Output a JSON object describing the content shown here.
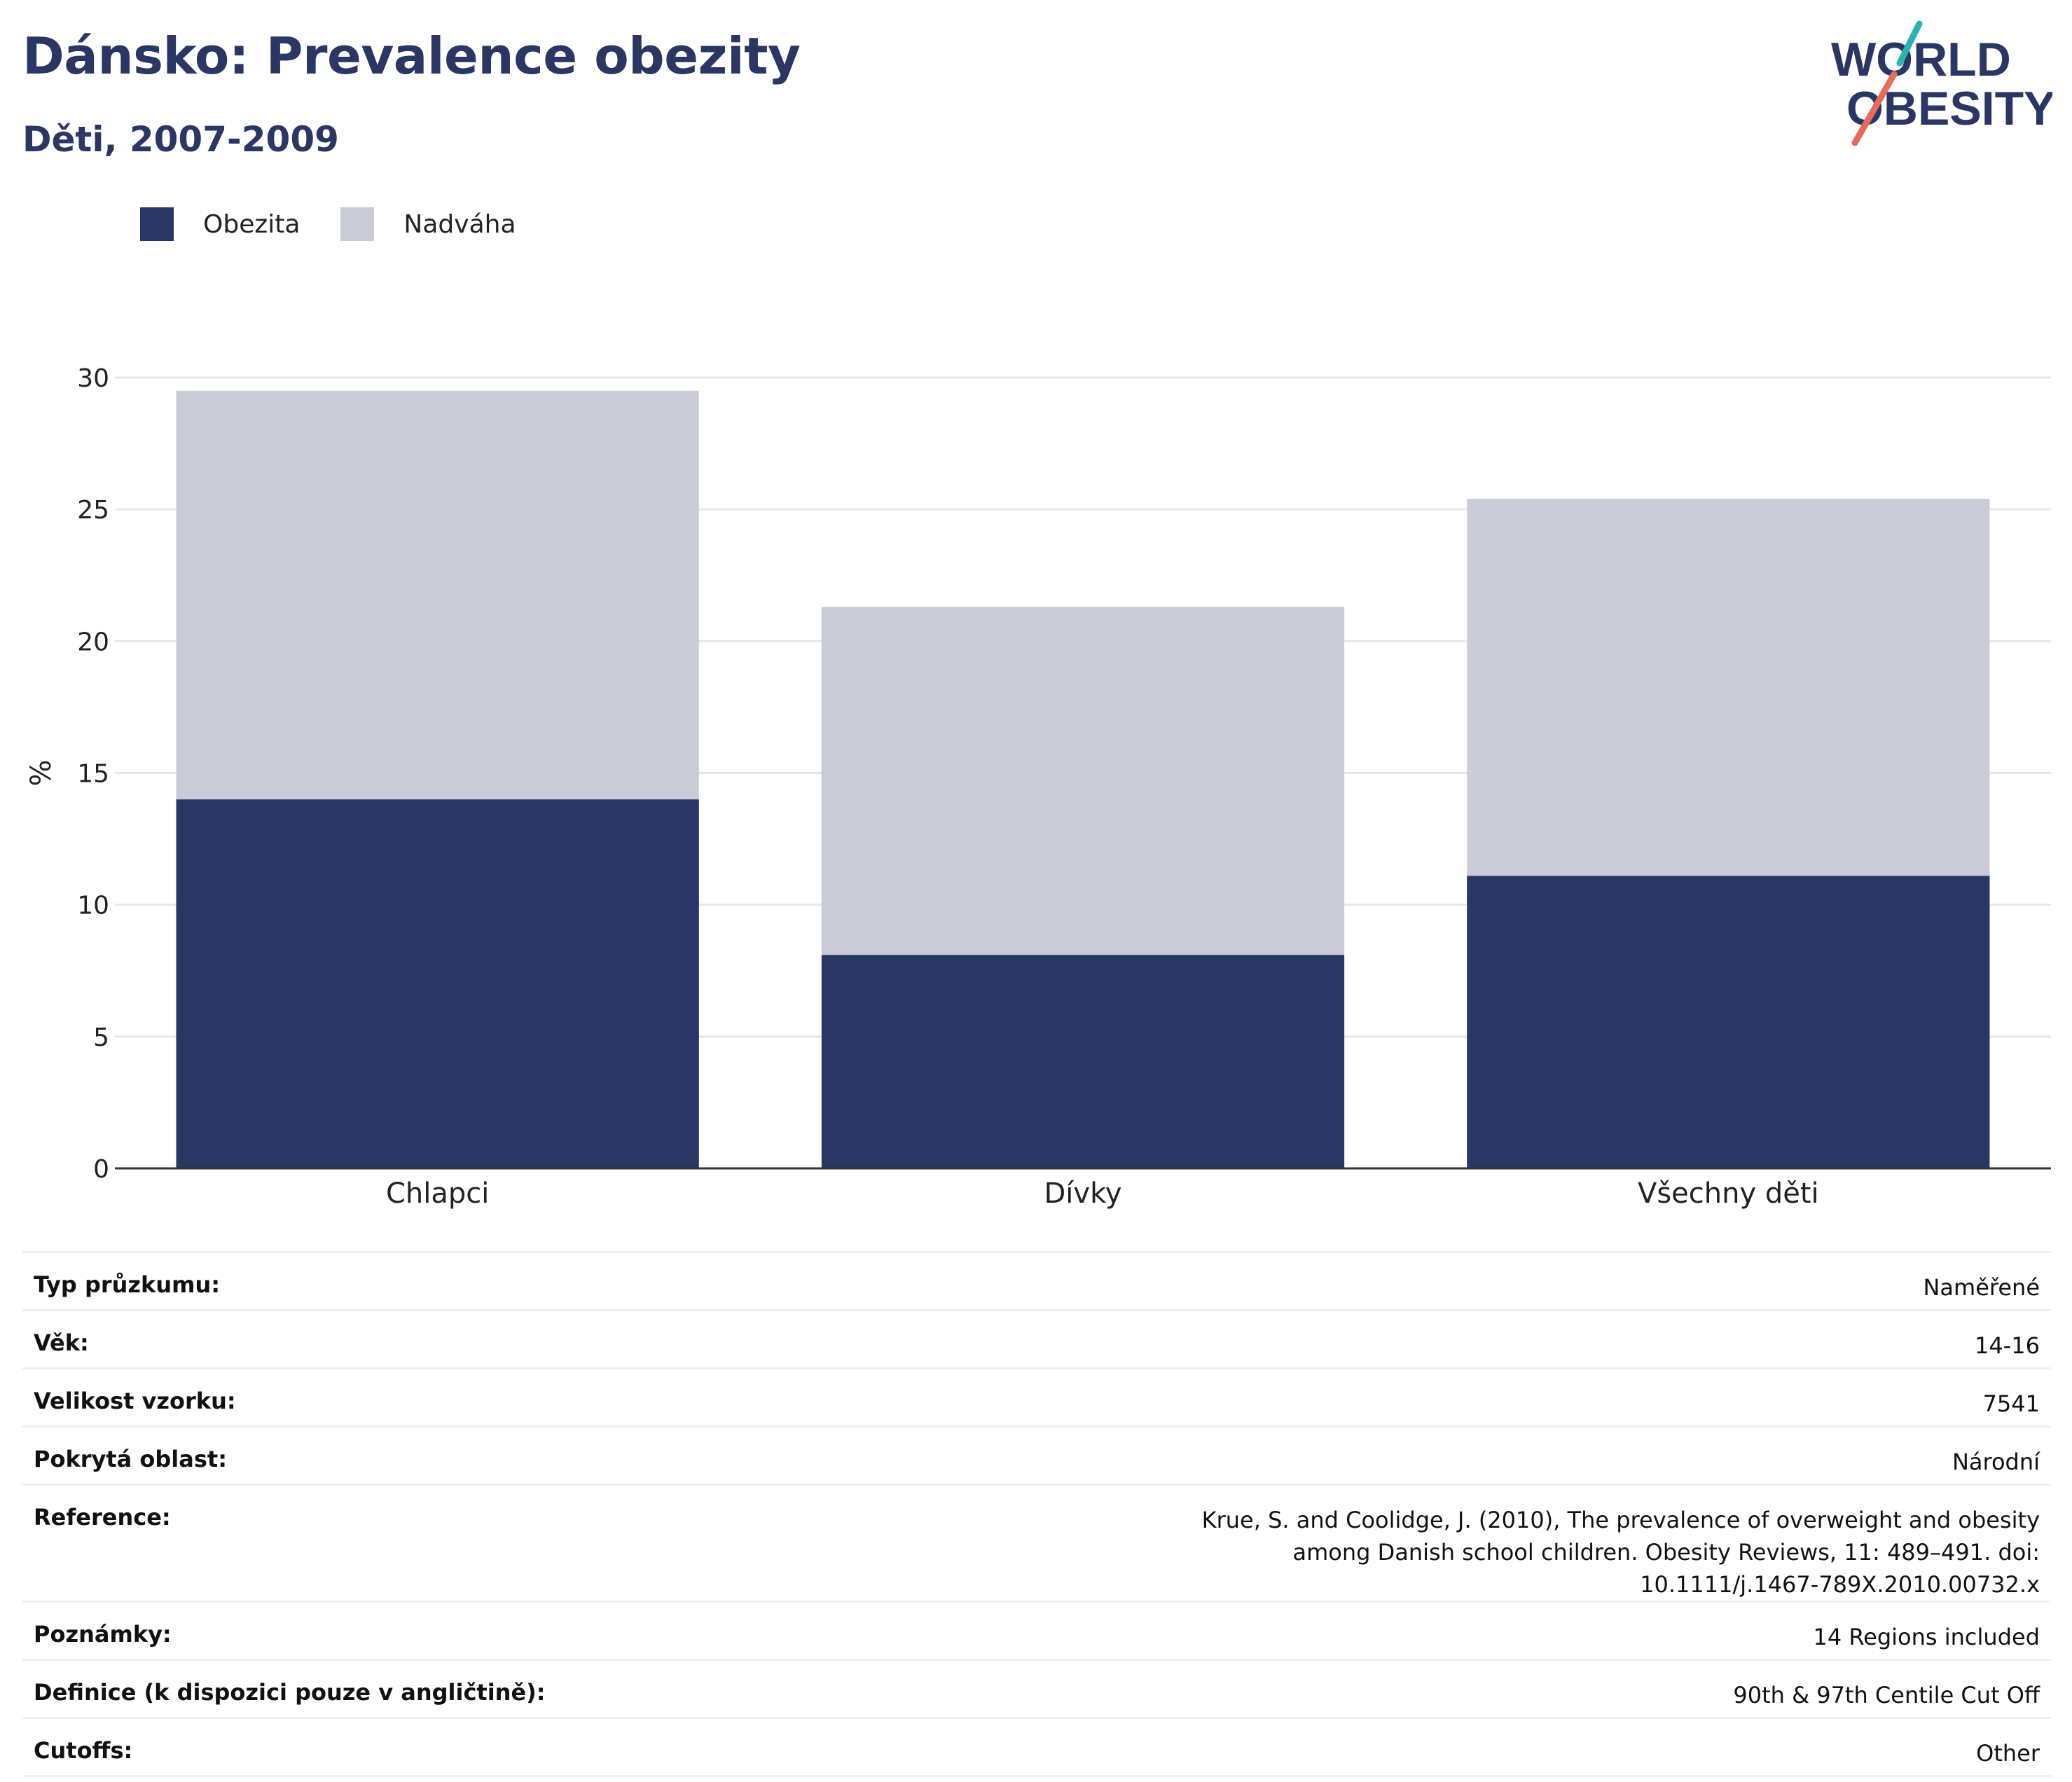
{
  "title": "Dánsko: Prevalence obezity",
  "subtitle": "Děti, 2007-2009",
  "logo": {
    "line1": "WORLD",
    "line2": "OBESITY",
    "accent_top": "#2bb3b1",
    "accent_bottom": "#e86a5c"
  },
  "colors": {
    "obesity": "#2a3663",
    "overweight": "#c9ccd7",
    "grid": "#e6e6ea",
    "axis": "#333333"
  },
  "legend": [
    {
      "name": "Obezita",
      "color": "#2a3663"
    },
    {
      "name": "Nadváha",
      "color": "#c9ccd7"
    }
  ],
  "chart_data": {
    "type": "bar",
    "stacked": true,
    "categories": [
      "Chlapci",
      "Dívky",
      "Všechny děti"
    ],
    "series": [
      {
        "name": "Obezita",
        "values": [
          14.0,
          8.1,
          11.1
        ]
      },
      {
        "name": "Nadváha",
        "values": [
          15.5,
          13.2,
          14.3
        ]
      }
    ],
    "ylabel": "%",
    "ylim": [
      0,
      30
    ],
    "yticks": [
      0,
      5,
      10,
      15,
      20,
      25,
      30
    ],
    "grid": true,
    "legend_position": "top-left"
  },
  "info": [
    {
      "label": "Typ průzkumu:",
      "value": "Naměřené"
    },
    {
      "label": "Věk:",
      "value": "14-16"
    },
    {
      "label": "Velikost vzorku:",
      "value": "7541"
    },
    {
      "label": "Pokrytá oblast:",
      "value": "Národní"
    },
    {
      "label": "Reference:",
      "value": "Krue, S. and Coolidge, J. (2010), The prevalence of overweight and obesity among Danish school children. Obesity Reviews, 11: 489–491. doi: 10.1111/j.1467-789X.2010.00732.x"
    },
    {
      "label": "Poznámky:",
      "value": "14 Regions included"
    },
    {
      "label": "Definice (k dispozici pouze v angličtině):",
      "value": "90th & 97th Centile Cut Off"
    },
    {
      "label": "Cutoffs:",
      "value": "Other"
    }
  ]
}
